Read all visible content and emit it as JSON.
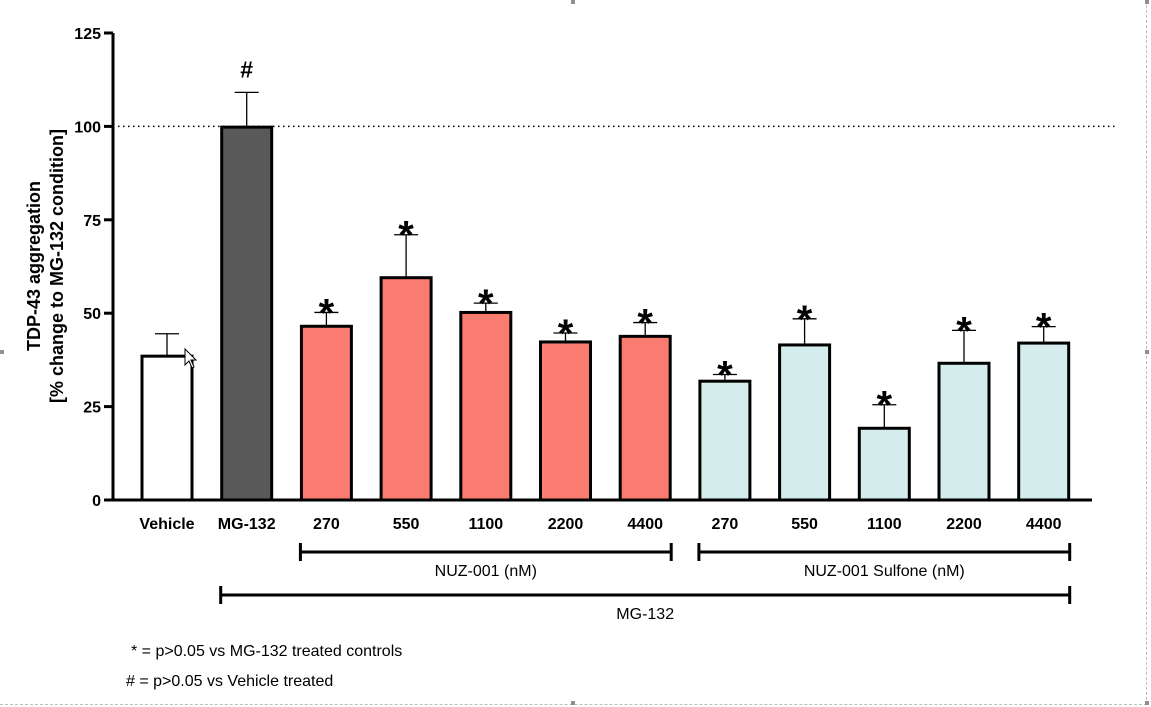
{
  "chart_data": {
    "type": "bar",
    "ylabel": "TDP-43 aggregation",
    "ylabel2": "[% change to MG-132 condition]",
    "ylim": [
      0,
      125
    ],
    "yticks": [
      0,
      25,
      50,
      75,
      100,
      125
    ],
    "reference_line": 100,
    "categories": [
      "Vehicle",
      "MG-132",
      "270",
      "550",
      "1100",
      "2200",
      "4400",
      "270",
      "550",
      "1100",
      "2200",
      "4400"
    ],
    "values": [
      38.5,
      99.8,
      46.5,
      59.5,
      50.2,
      42.3,
      43.8,
      31.8,
      41.5,
      19.2,
      36.6,
      42.0
    ],
    "errors": [
      6.0,
      9.3,
      3.7,
      11.5,
      2.5,
      2.4,
      3.7,
      1.8,
      7.0,
      6.3,
      8.8,
      4.4
    ],
    "fills": [
      "#ffffff",
      "#595959",
      "#fa7b6f",
      "#fa7b6f",
      "#fa7b6f",
      "#fa7b6f",
      "#fa7b6f",
      "#d4ecec",
      "#d4ecec",
      "#d4ecec",
      "#d4ecec",
      "#d4ecec"
    ],
    "markers": [
      "",
      "#",
      "*",
      "*",
      "*",
      "*",
      "*",
      "*",
      "*",
      "*",
      "*",
      "*"
    ],
    "groups": [
      {
        "label": "NUZ-001 (nM)",
        "first": 2,
        "last": 6
      },
      {
        "label": "NUZ-001 Sulfone (nM)",
        "first": 7,
        "last": 11
      },
      {
        "label": "MG-132",
        "first": 1,
        "last": 11
      }
    ]
  },
  "footnotes": {
    "star": "* = p>0.05 vs MG-132 treated controls",
    "hash": "# = p>0.05 vs Vehicle treated"
  }
}
